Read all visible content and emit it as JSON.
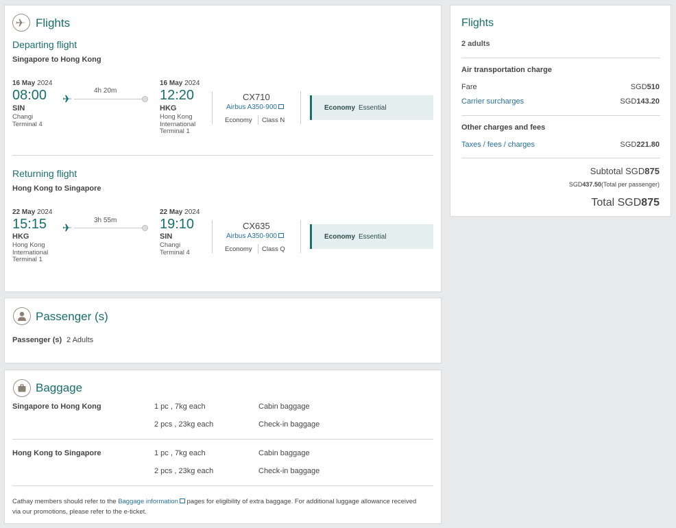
{
  "flights_card": {
    "title": "Flights",
    "departing": {
      "header": "Departing flight",
      "route": "Singapore to Hong Kong",
      "dep_date_day": "16 May",
      "dep_date_year": " 2024",
      "dep_time": "08:00",
      "dep_code": "SIN",
      "dep_airport_lines": [
        "Changi",
        "Terminal 4"
      ],
      "duration": "4h 20m",
      "arr_date_day": "16 May",
      "arr_date_year": " 2024",
      "arr_time": "12:20",
      "arr_code": "HKG",
      "arr_airport_lines": [
        "Hong Kong",
        "International",
        "Terminal 1"
      ],
      "flight_no": "CX710",
      "aircraft": "Airbus A350-900",
      "cabin": "Economy",
      "class": "Class N",
      "fare_cabin": "Economy",
      "fare_type": "Essential"
    },
    "returning": {
      "header": "Returning flight",
      "route": "Hong Kong to Singapore",
      "dep_date_day": "22 May",
      "dep_date_year": " 2024",
      "dep_time": "15:15",
      "dep_code": "HKG",
      "dep_airport_lines": [
        "Hong Kong",
        "International",
        "Terminal 1"
      ],
      "duration": "3h 55m",
      "arr_date_day": "22 May",
      "arr_date_year": " 2024",
      "arr_time": "19:10",
      "arr_code": "SIN",
      "arr_airport_lines": [
        "Changi",
        "Terminal 4"
      ],
      "flight_no": "CX635",
      "aircraft": "Airbus A350-900",
      "cabin": "Economy",
      "class": "Class Q",
      "fare_cabin": "Economy",
      "fare_type": "Essential"
    }
  },
  "passengers_card": {
    "title": "Passenger (s)",
    "label": "Passenger (s)",
    "value": "2 Adults"
  },
  "baggage_card": {
    "title": "Baggage",
    "routes": [
      {
        "route": "Singapore to Hong Kong",
        "items": [
          {
            "allowance": "1 pc , 7kg each",
            "type": "Cabin baggage"
          },
          {
            "allowance": "2 pcs , 23kg each",
            "type": "Check-in baggage"
          }
        ]
      },
      {
        "route": "Hong Kong to Singapore",
        "items": [
          {
            "allowance": "1 pc , 7kg each",
            "type": "Cabin baggage"
          },
          {
            "allowance": "2 pcs , 23kg each",
            "type": "Check-in baggage"
          }
        ]
      }
    ],
    "note_before": "Cathay members should refer to the ",
    "note_link": "Baggage information",
    "note_after": " pages for eligibility of extra baggage. For additional luggage allowance received",
    "note_line2": "via our promotions, please refer to the e-ticket."
  },
  "summary": {
    "title": "Flights",
    "adults": "2 adults",
    "air_header": "Air transportation charge",
    "fare_label": "Fare",
    "fare_currency": "SGD",
    "fare_amount": "510",
    "carrier_label": "Carrier surcharges",
    "carrier_currency": "SGD",
    "carrier_amount": "143.20",
    "other_header": "Other charges and fees",
    "taxes_label": "Taxes / fees / charges",
    "taxes_currency": "SGD",
    "taxes_amount": "221.80",
    "subtotal_label": "Subtotal SGD",
    "subtotal_amount": "875",
    "per_pax_currency": "SGD",
    "per_pax_amount": "437.50",
    "per_pax_label": "(Total per passenger)",
    "total_label": "Total SGD",
    "total_amount": "875"
  },
  "icons": {
    "flights_section": "plane-circle-icon",
    "passenger_section": "person-circle-icon",
    "baggage_section": "suitcase-circle-icon",
    "plane": "plane-icon",
    "external": "external-link-icon"
  },
  "colors": {
    "accent": "#1d6b6b",
    "link": "#2a6e94",
    "fare_bg": "#e5efef"
  }
}
